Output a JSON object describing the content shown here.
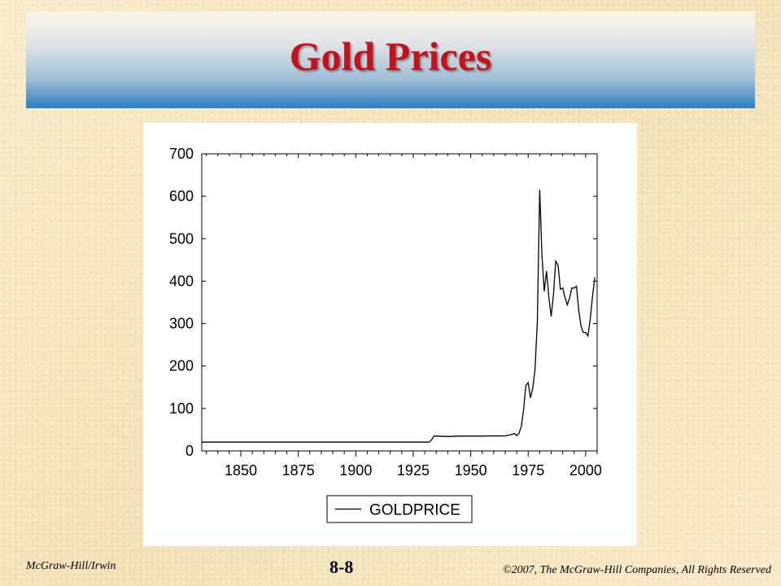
{
  "slide": {
    "title": "Gold Prices",
    "footer_left": "McGraw-Hill/Irwin",
    "page_number": "8-8",
    "footer_right": "©2007, The McGraw-Hill  Companies, All Rights Reserved"
  },
  "colors": {
    "title": "#c8101a",
    "banner_bottom": "#2c7ec0",
    "line": "#000000"
  },
  "chart_data": {
    "type": "line",
    "title": "",
    "xlabel": "",
    "ylabel": "",
    "xlim": [
      1833,
      2005
    ],
    "ylim": [
      0,
      700
    ],
    "x_ticks": [
      1850,
      1875,
      1900,
      1925,
      1950,
      1975,
      2000
    ],
    "y_ticks": [
      0,
      100,
      200,
      300,
      400,
      500,
      600,
      700
    ],
    "x_tick_labels": [
      "1850",
      "1875",
      "1900",
      "1925",
      "1950",
      "1975",
      "2000"
    ],
    "y_tick_labels": [
      "0",
      "100",
      "200",
      "300",
      "400",
      "500",
      "600",
      "700"
    ],
    "legend": {
      "entries": [
        "GOLDPRICE"
      ],
      "placement": "bottom"
    },
    "grid": false,
    "series": [
      {
        "name": "GOLDPRICE",
        "x": [
          1833,
          1860,
          1880,
          1900,
          1919,
          1920,
          1922,
          1930,
          1932,
          1933,
          1934,
          1935,
          1940,
          1945,
          1950,
          1955,
          1960,
          1965,
          1968,
          1969,
          1970,
          1971,
          1972,
          1973,
          1974,
          1975,
          1976,
          1977,
          1978,
          1979,
          1980,
          1981,
          1982,
          1983,
          1984,
          1985,
          1986,
          1987,
          1988,
          1989,
          1990,
          1991,
          1992,
          1993,
          1994,
          1995,
          1996,
          1997,
          1998,
          1999,
          2000,
          2001,
          2002,
          2003,
          2004
        ],
        "y": [
          20.67,
          20.67,
          20.67,
          20.67,
          20.67,
          20.67,
          20.67,
          20.67,
          20.67,
          26,
          35,
          35,
          34,
          35,
          35,
          35,
          35.5,
          35.2,
          39,
          41,
          36,
          41,
          58,
          97,
          154,
          161,
          125,
          148,
          193,
          306,
          615,
          460,
          376,
          424,
          361,
          317,
          368,
          447,
          437,
          381,
          384,
          362,
          344,
          360,
          384,
          384,
          388,
          331,
          294,
          279,
          279,
          271,
          310,
          364,
          409
        ]
      }
    ]
  }
}
